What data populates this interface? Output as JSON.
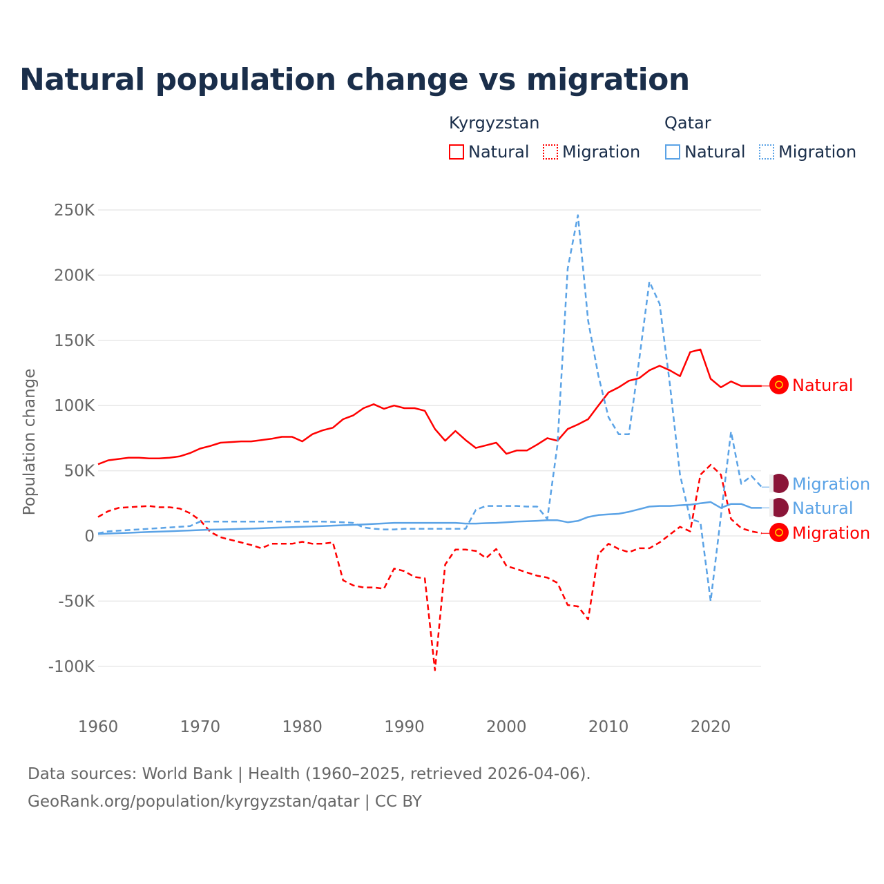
{
  "title": "Natural population change vs migration",
  "legend": {
    "groups": [
      {
        "name": "Kyrgyzstan",
        "items": [
          "Natural",
          "Migration"
        ]
      },
      {
        "name": "Qatar",
        "items": [
          "Natural",
          "Migration"
        ]
      }
    ]
  },
  "footer": [
    "Data sources: World Bank | Health (1960–2025, retrieved 2026-04-06).",
    "GeoRank.org/population/kyrgyzstan/qatar | CC BY"
  ],
  "colors": {
    "kyrgyzstan": "#ff0000",
    "qatar": "#5ba3e6",
    "text": "#1a2e4a",
    "grid": "#e8e8e8"
  },
  "chart_data": {
    "type": "line",
    "title": "Natural population change vs migration",
    "ylabel": "Population change",
    "xlabel": "",
    "xlim": [
      1960,
      2025
    ],
    "ylim": [
      -125000,
      250000
    ],
    "x_ticks": [
      1960,
      1970,
      1980,
      1990,
      2000,
      2010,
      2020
    ],
    "x_tick_labels": [
      "1960",
      "1970",
      "1980",
      "1990",
      "2000",
      "2010",
      "2020"
    ],
    "y_ticks": [
      -100000,
      -50000,
      0,
      50000,
      100000,
      150000,
      200000,
      250000
    ],
    "y_tick_labels": [
      "-100K",
      "-50K",
      "0",
      "50K",
      "100K",
      "150K",
      "200K",
      "250K"
    ],
    "grid": true,
    "legend_position": "top-right",
    "x_start": 1960,
    "series": [
      {
        "name": "Natural",
        "country": "Kyrgyzstan",
        "color": "#ff0000",
        "dash": false,
        "end_label": "Natural",
        "values": [
          55,
          58,
          59,
          60,
          60,
          59.5,
          59.5,
          60,
          61,
          63.5,
          67,
          69,
          71.5,
          72,
          72.5,
          72.5,
          73.5,
          74.5,
          76,
          76,
          72.5,
          78,
          81,
          83,
          89.5,
          92.5,
          98,
          101,
          97.5,
          100,
          98,
          98,
          96,
          82,
          73,
          80.5,
          73.5,
          67.5,
          69.5,
          71.5,
          63,
          65.5,
          65.5,
          70,
          75,
          73,
          82,
          85.5,
          89.5,
          100,
          110,
          114,
          119,
          121,
          127,
          130.5,
          127,
          122.5,
          141,
          143,
          120.5,
          114,
          118.5,
          115,
          115,
          115
        ]
      },
      {
        "name": "Migration",
        "country": "Kyrgyzstan",
        "color": "#ff0000",
        "dash": true,
        "end_label": "Migration",
        "values": [
          14.5,
          19,
          21.5,
          22,
          22.5,
          23,
          22,
          22,
          21,
          17.5,
          12,
          3,
          -1,
          -3,
          -5,
          -7,
          -9.5,
          -6,
          -6,
          -6,
          -4.5,
          -6,
          -6,
          -5,
          -34,
          -38,
          -39.5,
          -39.5,
          -40.5,
          -25,
          -27,
          -31.5,
          -32.5,
          -103,
          -22,
          -10.5,
          -10.5,
          -11.5,
          -17,
          -10,
          -23,
          -25.5,
          -28,
          -30.5,
          -32,
          -36,
          -53,
          -54,
          -64,
          -14,
          -6,
          -10,
          -12.5,
          -9.5,
          -9.5,
          -5,
          1,
          7,
          3.5,
          47,
          54.5,
          47,
          13,
          6,
          3.5,
          2
        ]
      },
      {
        "name": "Natural",
        "country": "Qatar",
        "color": "#5ba3e6",
        "dash": false,
        "end_label": "Natural",
        "values": [
          1.5,
          1.8,
          2.1,
          2.4,
          2.7,
          3,
          3.3,
          3.6,
          3.9,
          4.2,
          4.5,
          4.8,
          5,
          5.2,
          5.4,
          5.6,
          5.9,
          6.2,
          6.5,
          6.8,
          7,
          7.3,
          7.6,
          7.9,
          8.2,
          8.5,
          8.8,
          9.2,
          9.6,
          10,
          10,
          10,
          10,
          10,
          10,
          10,
          9.5,
          9.5,
          9.8,
          10,
          10.5,
          11,
          11.3,
          11.6,
          12,
          12,
          10.5,
          11.5,
          14.5,
          16,
          16.5,
          17,
          18.5,
          20.5,
          22.5,
          23,
          23,
          23.5,
          24,
          25,
          26,
          21.5,
          24.5,
          24.5,
          21.5,
          21.5
        ]
      },
      {
        "name": "Migration",
        "country": "Qatar",
        "color": "#5ba3e6",
        "dash": true,
        "end_label": "Migration",
        "values": [
          2,
          3.5,
          4,
          4.5,
          5,
          5.5,
          6,
          6.5,
          7,
          7.5,
          11,
          11,
          11,
          11,
          11,
          11,
          11,
          11,
          11,
          11,
          11,
          11,
          11,
          10.8,
          10.5,
          10,
          6.5,
          5.5,
          5,
          5,
          5.5,
          5.5,
          5.5,
          5.5,
          5.5,
          5.5,
          5.5,
          20,
          23,
          23,
          23,
          23,
          22.5,
          22.5,
          13,
          70,
          205,
          246,
          165,
          123,
          91,
          78,
          78,
          135,
          195,
          178,
          117,
          47,
          13,
          10.5,
          -50,
          15,
          80,
          40,
          46,
          37.5
        ]
      }
    ]
  }
}
